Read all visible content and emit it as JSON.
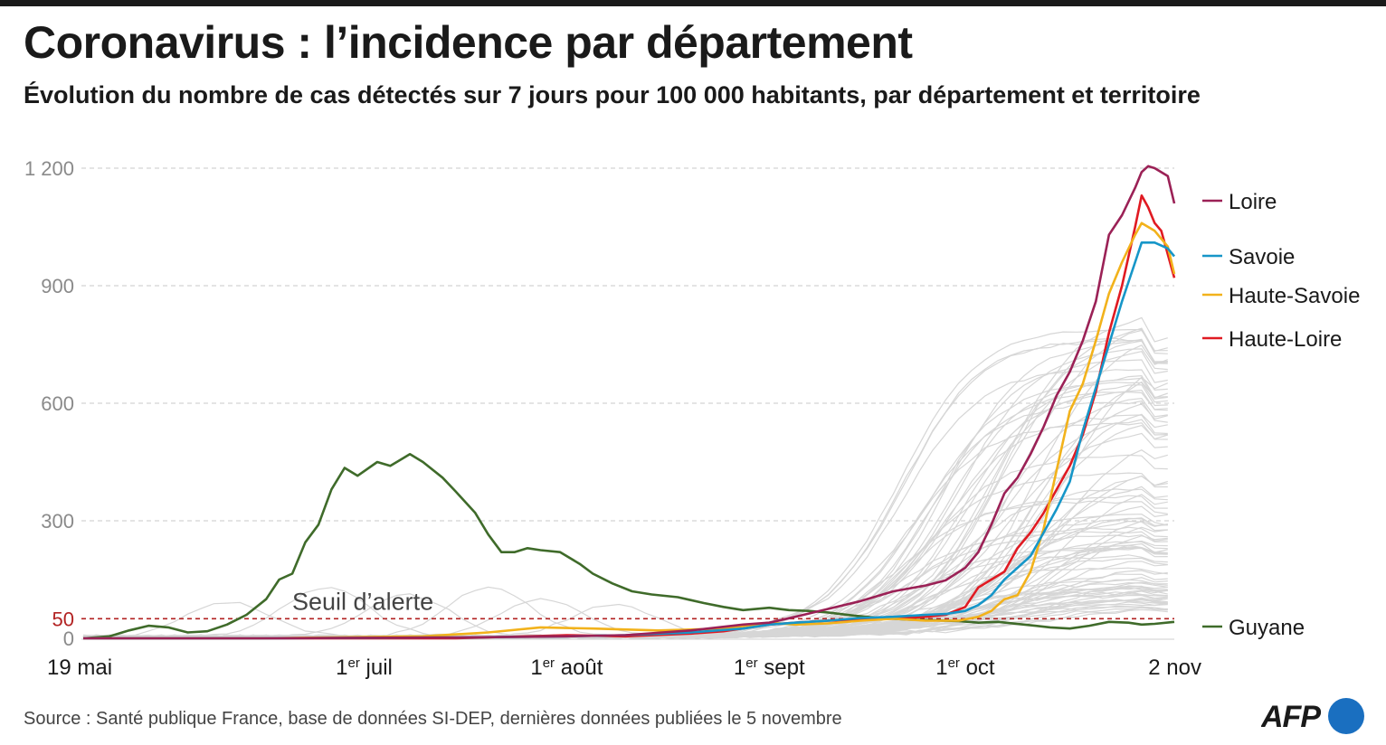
{
  "title": "Coronavirus : l’incidence par département",
  "subtitle": "Évolution du nombre de cas détectés sur 7 jours pour 100 000 habitants, par département et territoire",
  "source": "Source : Santé publique France, base de données SI-DEP, dernières données publiées le 5 novembre",
  "logo": "AFP",
  "colors": {
    "loire": "#9b2156",
    "savoie": "#1696c8",
    "haute_savoie": "#f2b21b",
    "haute_loire": "#e01a22",
    "guyane": "#3f6b2a",
    "background_lines": "#d6d6d6",
    "threshold": "#b22222",
    "logo_dot": "#1a6fc0"
  },
  "chart_data": {
    "type": "line",
    "x_range": [
      "2020-05-19",
      "2020-11-02"
    ],
    "ylim": [
      0,
      1200
    ],
    "y_ticks": [
      "1 200",
      "900",
      "600",
      "300",
      "50",
      "0"
    ],
    "y_tick_values": [
      1200,
      900,
      600,
      300,
      50,
      0
    ],
    "x_ticks": [
      {
        "date": "2020-05-19",
        "label": "19 mai",
        "sup": ""
      },
      {
        "date": "2020-07-01",
        "label": " juil",
        "sup": "er",
        "prefix": "1"
      },
      {
        "date": "2020-08-01",
        "label": " août",
        "sup": "er",
        "prefix": "1"
      },
      {
        "date": "2020-09-01",
        "label": " sept",
        "sup": "er",
        "prefix": "1"
      },
      {
        "date": "2020-10-01",
        "label": " oct",
        "sup": "er",
        "prefix": "1"
      },
      {
        "date": "2020-11-02",
        "label": "2 nov",
        "sup": ""
      }
    ],
    "threshold": {
      "value": 50,
      "label": "Seuil d’alerte"
    },
    "grid": true,
    "legend": "right",
    "series": [
      {
        "name": "Guyane",
        "color_key": "guyane",
        "points": [
          [
            "2020-05-19",
            0
          ],
          [
            "2020-05-23",
            5
          ],
          [
            "2020-05-26",
            20
          ],
          [
            "2020-05-29",
            32
          ],
          [
            "2020-06-01",
            28
          ],
          [
            "2020-06-04",
            15
          ],
          [
            "2020-06-07",
            18
          ],
          [
            "2020-06-10",
            35
          ],
          [
            "2020-06-13",
            60
          ],
          [
            "2020-06-16",
            100
          ],
          [
            "2020-06-18",
            150
          ],
          [
            "2020-06-20",
            165
          ],
          [
            "2020-06-22",
            245
          ],
          [
            "2020-06-24",
            290
          ],
          [
            "2020-06-26",
            380
          ],
          [
            "2020-06-28",
            435
          ],
          [
            "2020-06-30",
            415
          ],
          [
            "2020-07-03",
            450
          ],
          [
            "2020-07-05",
            440
          ],
          [
            "2020-07-08",
            470
          ],
          [
            "2020-07-10",
            450
          ],
          [
            "2020-07-13",
            410
          ],
          [
            "2020-07-15",
            375
          ],
          [
            "2020-07-18",
            320
          ],
          [
            "2020-07-20",
            265
          ],
          [
            "2020-07-22",
            220
          ],
          [
            "2020-07-24",
            220
          ],
          [
            "2020-07-26",
            230
          ],
          [
            "2020-07-28",
            225
          ],
          [
            "2020-07-31",
            220
          ],
          [
            "2020-08-03",
            190
          ],
          [
            "2020-08-05",
            165
          ],
          [
            "2020-08-08",
            140
          ],
          [
            "2020-08-11",
            120
          ],
          [
            "2020-08-14",
            112
          ],
          [
            "2020-08-18",
            105
          ],
          [
            "2020-08-22",
            90
          ],
          [
            "2020-08-25",
            80
          ],
          [
            "2020-08-28",
            72
          ],
          [
            "2020-09-01",
            78
          ],
          [
            "2020-09-04",
            72
          ],
          [
            "2020-09-07",
            70
          ],
          [
            "2020-09-10",
            66
          ],
          [
            "2020-09-14",
            58
          ],
          [
            "2020-09-18",
            52
          ],
          [
            "2020-09-22",
            48
          ],
          [
            "2020-09-26",
            46
          ],
          [
            "2020-09-30",
            44
          ],
          [
            "2020-10-03",
            40
          ],
          [
            "2020-10-06",
            42
          ],
          [
            "2020-10-10",
            35
          ],
          [
            "2020-10-14",
            28
          ],
          [
            "2020-10-17",
            25
          ],
          [
            "2020-10-20",
            32
          ],
          [
            "2020-10-23",
            42
          ],
          [
            "2020-10-26",
            40
          ],
          [
            "2020-10-28",
            35
          ],
          [
            "2020-10-30",
            37
          ],
          [
            "2020-11-02",
            42
          ]
        ]
      },
      {
        "name": "Haute-Loire",
        "color_key": "haute_loire",
        "points": [
          [
            "2020-05-19",
            0
          ],
          [
            "2020-06-15",
            0
          ],
          [
            "2020-07-15",
            0
          ],
          [
            "2020-08-01",
            8
          ],
          [
            "2020-08-10",
            5
          ],
          [
            "2020-08-20",
            12
          ],
          [
            "2020-08-25",
            18
          ],
          [
            "2020-09-01",
            35
          ],
          [
            "2020-09-05",
            40
          ],
          [
            "2020-09-10",
            45
          ],
          [
            "2020-09-15",
            48
          ],
          [
            "2020-09-20",
            50
          ],
          [
            "2020-09-25",
            55
          ],
          [
            "2020-09-28",
            60
          ],
          [
            "2020-10-01",
            80
          ],
          [
            "2020-10-03",
            130
          ],
          [
            "2020-10-05",
            150
          ],
          [
            "2020-10-07",
            170
          ],
          [
            "2020-10-09",
            230
          ],
          [
            "2020-10-11",
            270
          ],
          [
            "2020-10-13",
            320
          ],
          [
            "2020-10-15",
            380
          ],
          [
            "2020-10-17",
            440
          ],
          [
            "2020-10-19",
            520
          ],
          [
            "2020-10-21",
            630
          ],
          [
            "2020-10-23",
            780
          ],
          [
            "2020-10-25",
            900
          ],
          [
            "2020-10-27",
            1050
          ],
          [
            "2020-10-28",
            1130
          ],
          [
            "2020-10-29",
            1100
          ],
          [
            "2020-10-30",
            1060
          ],
          [
            "2020-10-31",
            1040
          ],
          [
            "2020-11-02",
            920
          ]
        ]
      },
      {
        "name": "Haute-Savoie",
        "color_key": "haute_savoie",
        "points": [
          [
            "2020-05-19",
            0
          ],
          [
            "2020-06-15",
            0
          ],
          [
            "2020-07-10",
            5
          ],
          [
            "2020-07-20",
            15
          ],
          [
            "2020-07-28",
            28
          ],
          [
            "2020-08-05",
            25
          ],
          [
            "2020-08-15",
            20
          ],
          [
            "2020-08-25",
            25
          ],
          [
            "2020-09-01",
            40
          ],
          [
            "2020-09-05",
            35
          ],
          [
            "2020-09-10",
            38
          ],
          [
            "2020-09-15",
            45
          ],
          [
            "2020-09-20",
            50
          ],
          [
            "2020-09-25",
            45
          ],
          [
            "2020-09-30",
            45
          ],
          [
            "2020-10-03",
            55
          ],
          [
            "2020-10-05",
            70
          ],
          [
            "2020-10-07",
            100
          ],
          [
            "2020-10-09",
            110
          ],
          [
            "2020-10-11",
            170
          ],
          [
            "2020-10-13",
            280
          ],
          [
            "2020-10-15",
            430
          ],
          [
            "2020-10-17",
            580
          ],
          [
            "2020-10-19",
            650
          ],
          [
            "2020-10-21",
            760
          ],
          [
            "2020-10-23",
            880
          ],
          [
            "2020-10-25",
            960
          ],
          [
            "2020-10-27",
            1030
          ],
          [
            "2020-10-28",
            1060
          ],
          [
            "2020-10-29",
            1050
          ],
          [
            "2020-10-30",
            1040
          ],
          [
            "2020-11-01",
            1000
          ],
          [
            "2020-11-02",
            930
          ]
        ]
      },
      {
        "name": "Savoie",
        "color_key": "savoie",
        "points": [
          [
            "2020-05-19",
            0
          ],
          [
            "2020-06-15",
            0
          ],
          [
            "2020-07-15",
            2
          ],
          [
            "2020-08-01",
            5
          ],
          [
            "2020-08-10",
            8
          ],
          [
            "2020-08-20",
            15
          ],
          [
            "2020-08-28",
            25
          ],
          [
            "2020-09-01",
            35
          ],
          [
            "2020-09-05",
            40
          ],
          [
            "2020-09-10",
            45
          ],
          [
            "2020-09-15",
            52
          ],
          [
            "2020-09-20",
            55
          ],
          [
            "2020-09-25",
            60
          ],
          [
            "2020-09-28",
            62
          ],
          [
            "2020-10-01",
            70
          ],
          [
            "2020-10-03",
            85
          ],
          [
            "2020-10-05",
            110
          ],
          [
            "2020-10-07",
            150
          ],
          [
            "2020-10-09",
            180
          ],
          [
            "2020-10-11",
            210
          ],
          [
            "2020-10-13",
            270
          ],
          [
            "2020-10-15",
            330
          ],
          [
            "2020-10-17",
            400
          ],
          [
            "2020-10-19",
            530
          ],
          [
            "2020-10-21",
            640
          ],
          [
            "2020-10-23",
            750
          ],
          [
            "2020-10-25",
            860
          ],
          [
            "2020-10-27",
            960
          ],
          [
            "2020-10-28",
            1010
          ],
          [
            "2020-10-30",
            1010
          ],
          [
            "2020-11-01",
            995
          ],
          [
            "2020-11-02",
            975
          ]
        ]
      },
      {
        "name": "Loire",
        "color_key": "loire",
        "points": [
          [
            "2020-05-19",
            0
          ],
          [
            "2020-06-15",
            0
          ],
          [
            "2020-07-15",
            2
          ],
          [
            "2020-08-01",
            5
          ],
          [
            "2020-08-10",
            8
          ],
          [
            "2020-08-20",
            20
          ],
          [
            "2020-08-28",
            35
          ],
          [
            "2020-09-01",
            40
          ],
          [
            "2020-09-05",
            55
          ],
          [
            "2020-09-10",
            75
          ],
          [
            "2020-09-15",
            95
          ],
          [
            "2020-09-20",
            120
          ],
          [
            "2020-09-25",
            135
          ],
          [
            "2020-09-28",
            148
          ],
          [
            "2020-10-01",
            180
          ],
          [
            "2020-10-03",
            220
          ],
          [
            "2020-10-05",
            290
          ],
          [
            "2020-10-07",
            370
          ],
          [
            "2020-10-09",
            410
          ],
          [
            "2020-10-11",
            470
          ],
          [
            "2020-10-13",
            540
          ],
          [
            "2020-10-15",
            620
          ],
          [
            "2020-10-17",
            680
          ],
          [
            "2020-10-19",
            760
          ],
          [
            "2020-10-21",
            860
          ],
          [
            "2020-10-23",
            1030
          ],
          [
            "2020-10-25",
            1080
          ],
          [
            "2020-10-27",
            1150
          ],
          [
            "2020-10-28",
            1190
          ],
          [
            "2020-10-29",
            1205
          ],
          [
            "2020-10-30",
            1200
          ],
          [
            "2020-11-01",
            1180
          ],
          [
            "2020-11-02",
            1110
          ]
        ]
      }
    ]
  }
}
